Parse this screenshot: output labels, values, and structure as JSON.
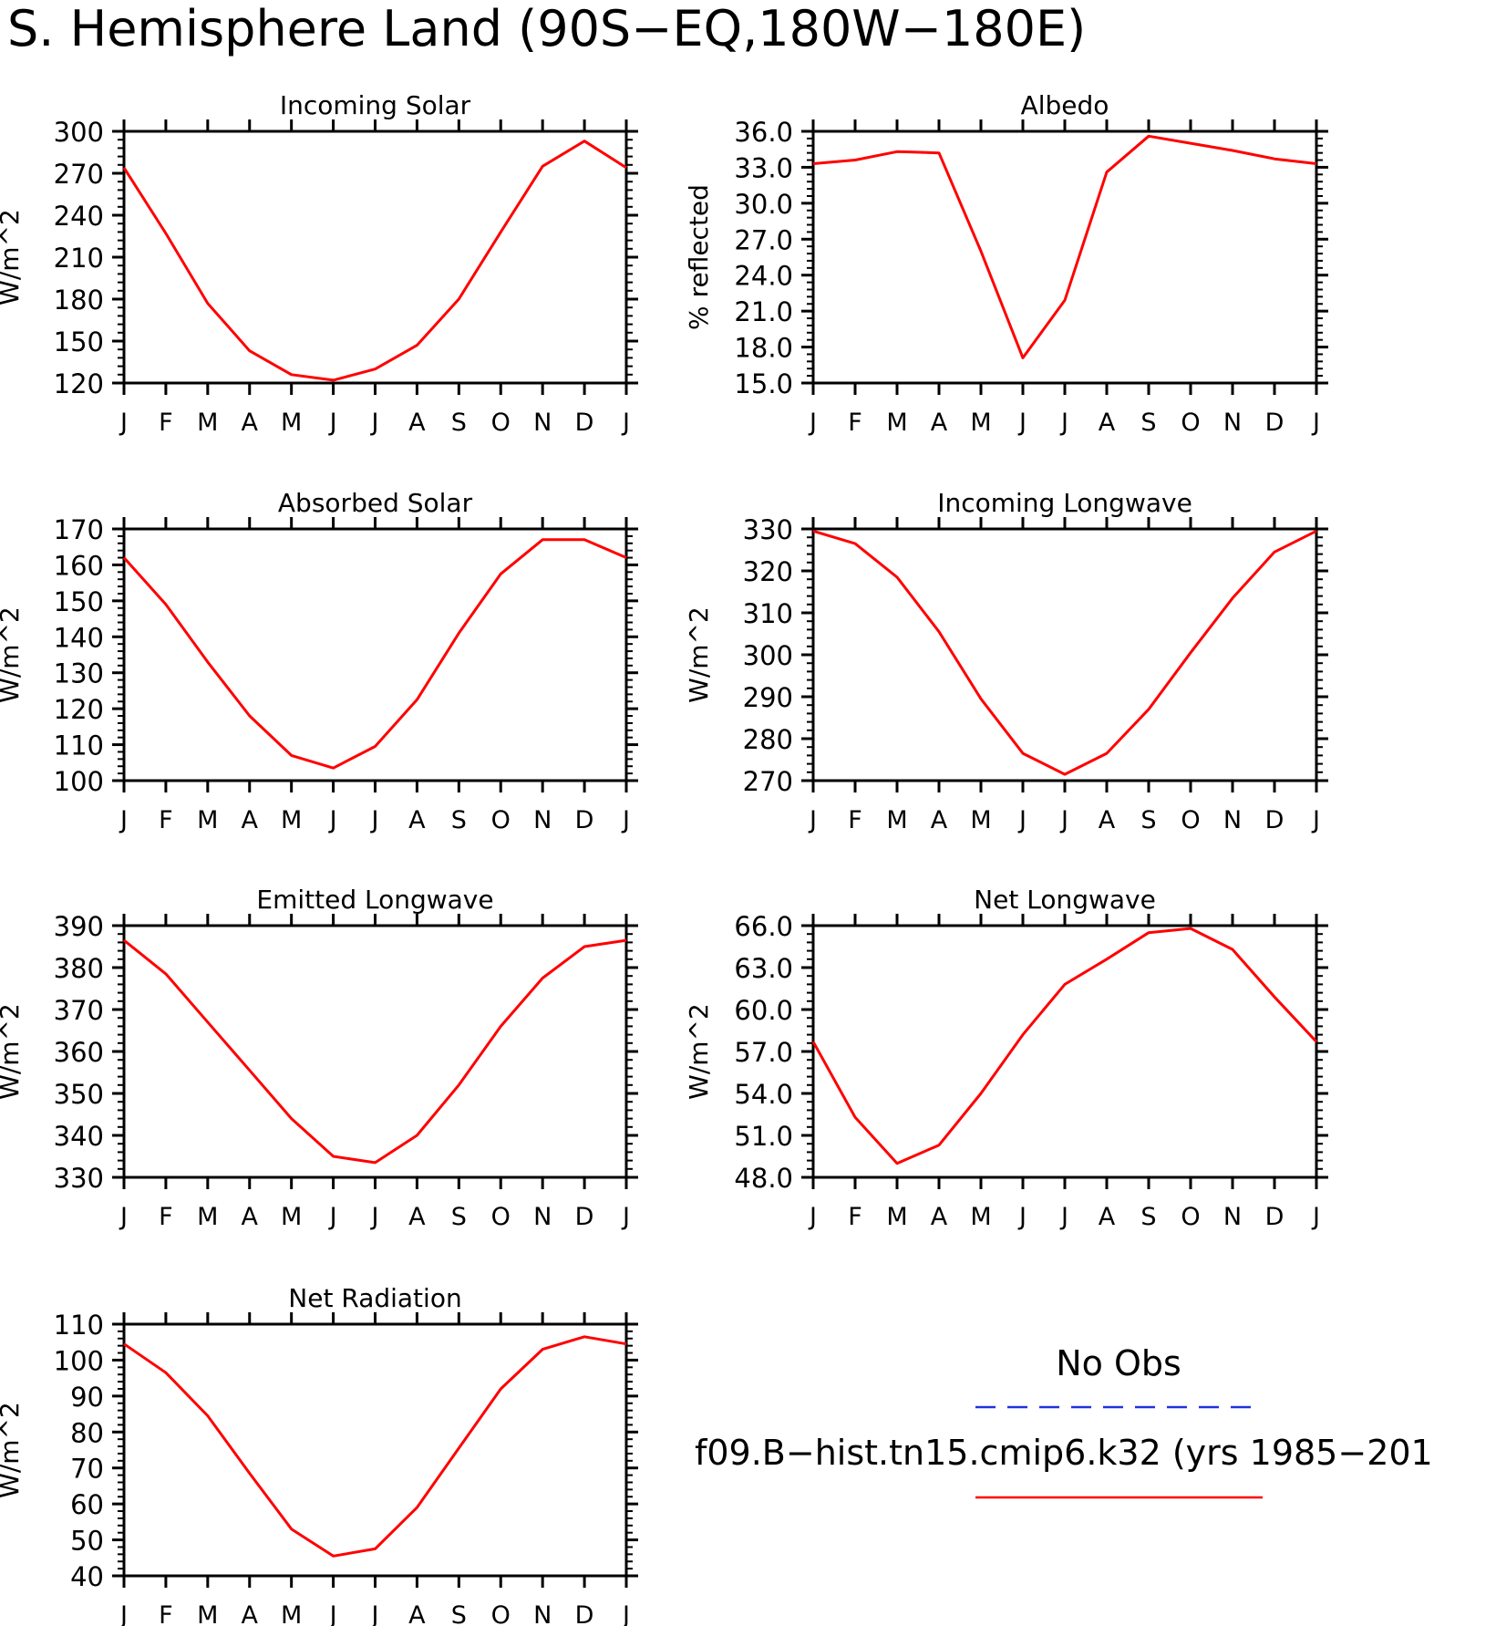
{
  "page_title": "S. Hemisphere Land (90S−EQ,180W−180E)",
  "legend": {
    "obs_label": "No Obs",
    "obs_color": "#2233dd",
    "model_label": "f09.B−hist.tn15.cmip6.k32 (yrs 1985−201",
    "model_color": "#ff0000"
  },
  "chart_data": [
    {
      "type": "line",
      "title": "Incoming Solar",
      "ylabel": "W/m^2",
      "x": [
        "J",
        "F",
        "M",
        "A",
        "M",
        "J",
        "J",
        "A",
        "S",
        "O",
        "N",
        "D",
        "J"
      ],
      "ylim": [
        120,
        300
      ],
      "yticks": [
        "120",
        "150",
        "180",
        "210",
        "240",
        "270",
        "300"
      ],
      "series": [
        {
          "values": [
            274,
            227,
            177,
            143,
            126,
            122,
            130,
            147,
            180,
            228,
            275,
            293,
            274
          ]
        }
      ]
    },
    {
      "type": "line",
      "title": "Albedo",
      "ylabel": "% reflected",
      "x": [
        "J",
        "F",
        "M",
        "A",
        "M",
        "J",
        "J",
        "A",
        "S",
        "O",
        "N",
        "D",
        "J"
      ],
      "ylim": [
        15.0,
        36.0
      ],
      "yticks": [
        "15.0",
        "18.0",
        "21.0",
        "24.0",
        "27.0",
        "30.0",
        "33.0",
        "36.0"
      ],
      "series": [
        {
          "values": [
            33.3,
            33.6,
            34.3,
            34.2,
            26.0,
            17.1,
            21.9,
            32.6,
            35.6,
            35.0,
            34.4,
            33.7,
            33.3
          ]
        }
      ]
    },
    {
      "type": "line",
      "title": "Absorbed Solar",
      "ylabel": "W/m^2",
      "x": [
        "J",
        "F",
        "M",
        "A",
        "M",
        "J",
        "J",
        "A",
        "S",
        "O",
        "N",
        "D",
        "J"
      ],
      "ylim": [
        100,
        170
      ],
      "yticks": [
        "100",
        "110",
        "120",
        "130",
        "140",
        "150",
        "160",
        "170"
      ],
      "series": [
        {
          "values": [
            162,
            149,
            133,
            118,
            107,
            103.5,
            109.5,
            122.5,
            141,
            157.5,
            167,
            167,
            162
          ]
        }
      ]
    },
    {
      "type": "line",
      "title": "Incoming Longwave",
      "ylabel": "W/m^2",
      "x": [
        "J",
        "F",
        "M",
        "A",
        "M",
        "J",
        "J",
        "A",
        "S",
        "O",
        "N",
        "D",
        "J"
      ],
      "ylim": [
        270,
        330
      ],
      "yticks": [
        "270",
        "280",
        "290",
        "300",
        "310",
        "320",
        "330"
      ],
      "series": [
        {
          "values": [
            329.5,
            326.5,
            318.5,
            305.5,
            289.5,
            276.5,
            271.5,
            276.5,
            287,
            300.5,
            313.5,
            324.5,
            329.5
          ]
        }
      ]
    },
    {
      "type": "line",
      "title": "Emitted Longwave",
      "ylabel": "W/m^2",
      "x": [
        "J",
        "F",
        "M",
        "A",
        "M",
        "J",
        "J",
        "A",
        "S",
        "O",
        "N",
        "D",
        "J"
      ],
      "ylim": [
        330,
        390
      ],
      "yticks": [
        "330",
        "340",
        "350",
        "360",
        "370",
        "380",
        "390"
      ],
      "series": [
        {
          "values": [
            386.5,
            378.5,
            367,
            355.5,
            344,
            335,
            333.5,
            340,
            352,
            366,
            377.5,
            385,
            386.5
          ]
        }
      ]
    },
    {
      "type": "line",
      "title": "Net Longwave",
      "ylabel": "W/m^2",
      "x": [
        "J",
        "F",
        "M",
        "A",
        "M",
        "J",
        "J",
        "A",
        "S",
        "O",
        "N",
        "D",
        "J"
      ],
      "ylim": [
        48.0,
        66.0
      ],
      "yticks": [
        "48.0",
        "51.0",
        "54.0",
        "57.0",
        "60.0",
        "63.0",
        "66.0"
      ],
      "series": [
        {
          "values": [
            57.7,
            52.3,
            49.0,
            50.3,
            54.0,
            58.2,
            61.8,
            63.6,
            65.5,
            65.8,
            64.3,
            60.9,
            57.7
          ]
        }
      ]
    },
    {
      "type": "line",
      "title": "Net Radiation",
      "ylabel": "W/m^2",
      "x": [
        "J",
        "F",
        "M",
        "A",
        "M",
        "J",
        "J",
        "A",
        "S",
        "O",
        "N",
        "D",
        "J"
      ],
      "ylim": [
        40,
        110
      ],
      "yticks": [
        "40",
        "50",
        "60",
        "70",
        "80",
        "90",
        "100",
        "110"
      ],
      "series": [
        {
          "values": [
            104.5,
            96.5,
            84.5,
            68.5,
            53,
            45.5,
            47.5,
            59,
            75.5,
            92,
            103,
            106.5,
            104.5
          ]
        }
      ]
    }
  ]
}
